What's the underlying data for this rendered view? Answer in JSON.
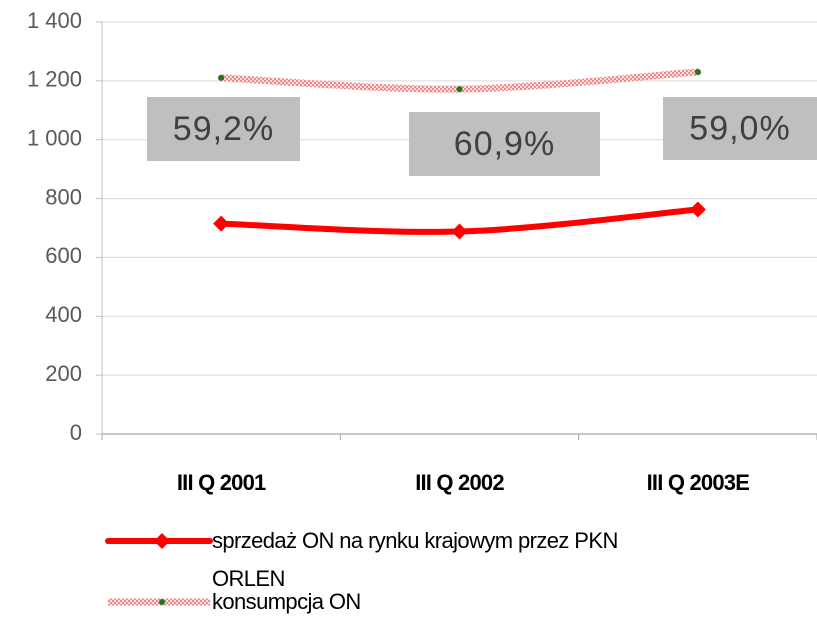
{
  "chart_data": {
    "type": "line",
    "categories": [
      "III Q 2001",
      "III Q 2002",
      "III Q 2003E"
    ],
    "series": [
      {
        "name": "sprzedaż ON na rynku krajowym przez PKN ORLEN",
        "color": "#ff0000",
        "values": [
          715,
          688,
          763
        ]
      },
      {
        "name": "konsumpcja ON",
        "color": "#f4a7a7",
        "marker_color": "#1a7a1a",
        "values": [
          1210,
          1172,
          1230
        ]
      }
    ],
    "annotations": [
      "59,2%",
      "60,9%",
      "59,0%"
    ],
    "ylim": [
      0,
      1400
    ],
    "yticks": [
      0,
      200,
      400,
      600,
      800,
      {
        "value": 1000,
        "label": "1 000"
      },
      {
        "value": 1200,
        "label": "1 200"
      },
      {
        "value": 1400,
        "label": "1 400"
      }
    ],
    "grid": true
  }
}
